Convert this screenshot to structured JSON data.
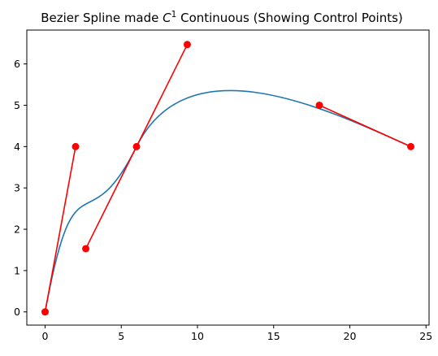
{
  "chart_data": {
    "type": "line",
    "title_prefix": "Bezier Spline made ",
    "title_math_base": "C",
    "title_math_sup": "1",
    "title_suffix": " Continuous (Showing Control Points)",
    "xlabel": "",
    "ylabel": "",
    "xlim": [
      -1.2,
      25.2
    ],
    "ylim": [
      -0.32,
      6.82
    ],
    "xticks": [
      0,
      5,
      10,
      15,
      20,
      25
    ],
    "yticks": [
      0,
      1,
      2,
      3,
      4,
      5,
      6
    ],
    "grid": false,
    "series": [
      {
        "kind": "curve",
        "color": "#1f77b4",
        "segments": [
          [
            [
              0,
              0
            ],
            [
              2,
              4
            ],
            [
              2.67,
              1.53
            ],
            [
              6,
              4
            ]
          ],
          [
            [
              6,
              4
            ],
            [
              9.33,
              6.47
            ],
            [
              18,
              5
            ],
            [
              24,
              4
            ]
          ]
        ]
      },
      {
        "kind": "control-lines",
        "color": "#ff0000",
        "lines": [
          [
            [
              0,
              0
            ],
            [
              2,
              4
            ]
          ],
          [
            [
              2.67,
              1.53
            ],
            [
              6,
              4
            ],
            [
              9.33,
              6.47
            ]
          ],
          [
            [
              18,
              5
            ],
            [
              24,
              4
            ]
          ]
        ],
        "points": [
          [
            0,
            0
          ],
          [
            2,
            4
          ],
          [
            2.67,
            1.53
          ],
          [
            6,
            4
          ],
          [
            9.33,
            6.47
          ],
          [
            18,
            5
          ],
          [
            24,
            4
          ]
        ]
      }
    ]
  }
}
